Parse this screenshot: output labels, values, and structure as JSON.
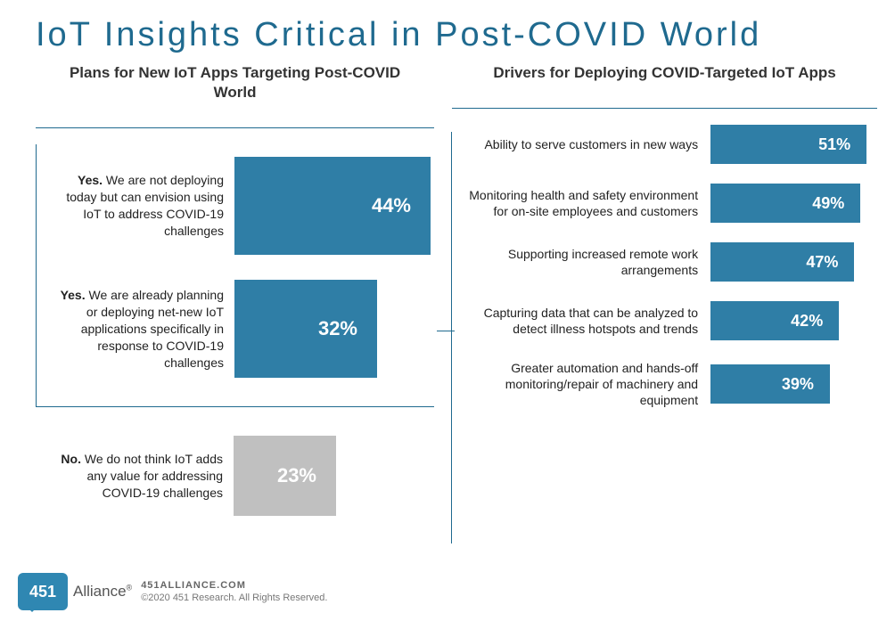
{
  "title": "IoT Insights Critical in Post-COVID World",
  "colors": {
    "primary_bar": "#2f7ea6",
    "gray_bar": "#c0c0c0",
    "accent_line": "#1f6a8f",
    "title_color": "#1f6a8f",
    "background": "#ffffff",
    "text": "#222222"
  },
  "left_chart": {
    "type": "bar-horizontal",
    "title": "Plans for New IoT Apps Targeting\nPost-COVID World",
    "max_percent": 44,
    "items": [
      {
        "lead": "Yes.",
        "label": "We are not deploying today but can envision using IoT to address COVID-19 challenges",
        "value": 44,
        "display": "44%",
        "bar_color": "#2f7ea6",
        "in_group": true
      },
      {
        "lead": "Yes.",
        "label": "We are already planning or deploying net-new IoT applications specifically in response to COVID-19 challenges",
        "value": 32,
        "display": "32%",
        "bar_color": "#2f7ea6",
        "in_group": true
      },
      {
        "lead": "No.",
        "label": "We do not think IoT adds any value for addressing COVID-19 challenges",
        "value": 23,
        "display": "23%",
        "bar_color": "#c0c0c0",
        "in_group": false
      }
    ]
  },
  "right_chart": {
    "type": "bar-horizontal",
    "title": "Drivers for Deploying\nCOVID-Targeted IoT Apps",
    "max_percent": 51,
    "bar_color": "#2f7ea6",
    "items": [
      {
        "label": "Ability to serve customers in new ways",
        "value": 51,
        "display": "51%"
      },
      {
        "label": "Monitoring health and safety environment for on-site employees and customers",
        "value": 49,
        "display": "49%"
      },
      {
        "label": "Supporting increased remote work arrangements",
        "value": 47,
        "display": "47%"
      },
      {
        "label": "Capturing data that can be analyzed to detect illness hotspots and trends",
        "value": 42,
        "display": "42%"
      },
      {
        "label": "Greater automation and hands-off monitoring/repair of machinery and equipment",
        "value": 39,
        "display": "39%"
      }
    ]
  },
  "footer": {
    "logo_number": "451",
    "logo_word": "Alliance",
    "site": "451ALLIANCE.COM",
    "copyright": "©2020 451 Research. All Rights Reserved."
  }
}
